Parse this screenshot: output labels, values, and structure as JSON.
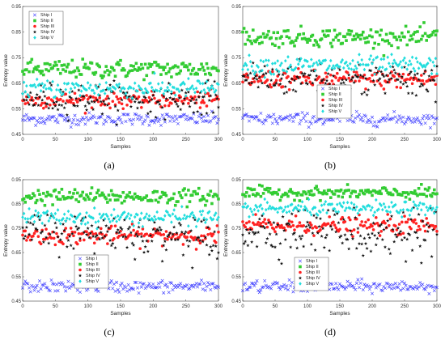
{
  "figure": {
    "panel_labels": [
      "(a)",
      "(b)",
      "(c)",
      "(d)"
    ]
  },
  "chart_data": [
    {
      "type": "scatter",
      "panel": "(a)",
      "xlabel": "Samples",
      "ylabel": "Entropy value",
      "xlim": [
        0,
        300
      ],
      "ylim": [
        0.45,
        0.95
      ],
      "xticks": [
        "0",
        "50",
        "100",
        "150",
        "200",
        "250",
        "300"
      ],
      "yticks": [
        "0.45",
        "0.55",
        "0.65",
        "0.75",
        "0.85",
        "0.95"
      ],
      "legend_position": "top-left",
      "series": [
        {
          "name": "Ship I",
          "color": "#3333ff",
          "marker": "x",
          "mean": 0.51,
          "spread": 0.012
        },
        {
          "name": "Ship II",
          "color": "#33cc33",
          "marker": "square",
          "mean": 0.705,
          "spread": 0.018
        },
        {
          "name": "Ship III",
          "color": "#ff2222",
          "marker": "circle",
          "mean": 0.585,
          "spread": 0.015
        },
        {
          "name": "Ship IV",
          "color": "#111111",
          "marker": "star",
          "mean": 0.59,
          "spread": 0.03
        },
        {
          "name": "Ship V",
          "color": "#22dddd",
          "marker": "diamond",
          "mean": 0.63,
          "spread": 0.018
        }
      ]
    },
    {
      "type": "scatter",
      "panel": "(b)",
      "xlabel": "Samples",
      "ylabel": "Entropy value",
      "xlim": [
        0,
        300
      ],
      "ylim": [
        0.45,
        0.95
      ],
      "xticks": [
        "0",
        "50",
        "100",
        "150",
        "200",
        "250",
        "300"
      ],
      "yticks": [
        "0.45",
        "0.55",
        "0.65",
        "0.75",
        "0.85",
        "0.95"
      ],
      "legend_position": "center",
      "series": [
        {
          "name": "Ship I",
          "color": "#3333ff",
          "marker": "x",
          "mean": 0.51,
          "spread": 0.012
        },
        {
          "name": "Ship II",
          "color": "#33cc33",
          "marker": "square",
          "mean": 0.83,
          "spread": 0.018
        },
        {
          "name": "Ship III",
          "color": "#ff2222",
          "marker": "circle",
          "mean": 0.665,
          "spread": 0.018
        },
        {
          "name": "Ship IV",
          "color": "#111111",
          "marker": "star",
          "mean": 0.67,
          "spread": 0.035
        },
        {
          "name": "Ship V",
          "color": "#22dddd",
          "marker": "diamond",
          "mean": 0.72,
          "spread": 0.018
        }
      ]
    },
    {
      "type": "scatter",
      "panel": "(c)",
      "xlabel": "Samples",
      "ylabel": "Entropy value",
      "xlim": [
        0,
        300
      ],
      "ylim": [
        0.45,
        0.95
      ],
      "xticks": [
        "0",
        "50",
        "100",
        "150",
        "200",
        "250",
        "300"
      ],
      "yticks": [
        "0.45",
        "0.55",
        "0.65",
        "0.75",
        "0.85",
        "0.95"
      ],
      "legend_position": "center",
      "series": [
        {
          "name": "Ship I",
          "color": "#3333ff",
          "marker": "x",
          "mean": 0.51,
          "spread": 0.012
        },
        {
          "name": "Ship II",
          "color": "#33cc33",
          "marker": "square",
          "mean": 0.88,
          "spread": 0.016
        },
        {
          "name": "Ship III",
          "color": "#ff2222",
          "marker": "circle",
          "mean": 0.72,
          "spread": 0.018
        },
        {
          "name": "Ship IV",
          "color": "#111111",
          "marker": "star",
          "mean": 0.735,
          "spread": 0.04
        },
        {
          "name": "Ship V",
          "color": "#22dddd",
          "marker": "diamond",
          "mean": 0.795,
          "spread": 0.016
        }
      ]
    },
    {
      "type": "scatter",
      "panel": "(d)",
      "xlabel": "Samples",
      "ylabel": "Entropy value",
      "xlim": [
        0,
        300
      ],
      "ylim": [
        0.45,
        0.95
      ],
      "xticks": [
        "0",
        "50",
        "100",
        "150",
        "200",
        "250",
        "300"
      ],
      "yticks": [
        "0.45",
        "0.55",
        "0.65",
        "0.75",
        "0.85",
        "0.95"
      ],
      "legend_position": "center",
      "series": [
        {
          "name": "Ship I",
          "color": "#3333ff",
          "marker": "x",
          "mean": 0.51,
          "spread": 0.012
        },
        {
          "name": "Ship II",
          "color": "#33cc33",
          "marker": "square",
          "mean": 0.895,
          "spread": 0.012
        },
        {
          "name": "Ship III",
          "color": "#ff2222",
          "marker": "circle",
          "mean": 0.76,
          "spread": 0.018
        },
        {
          "name": "Ship IV",
          "color": "#111111",
          "marker": "star",
          "mean": 0.74,
          "spread": 0.045
        },
        {
          "name": "Ship V",
          "color": "#22dddd",
          "marker": "diamond",
          "mean": 0.83,
          "spread": 0.014
        }
      ]
    }
  ]
}
